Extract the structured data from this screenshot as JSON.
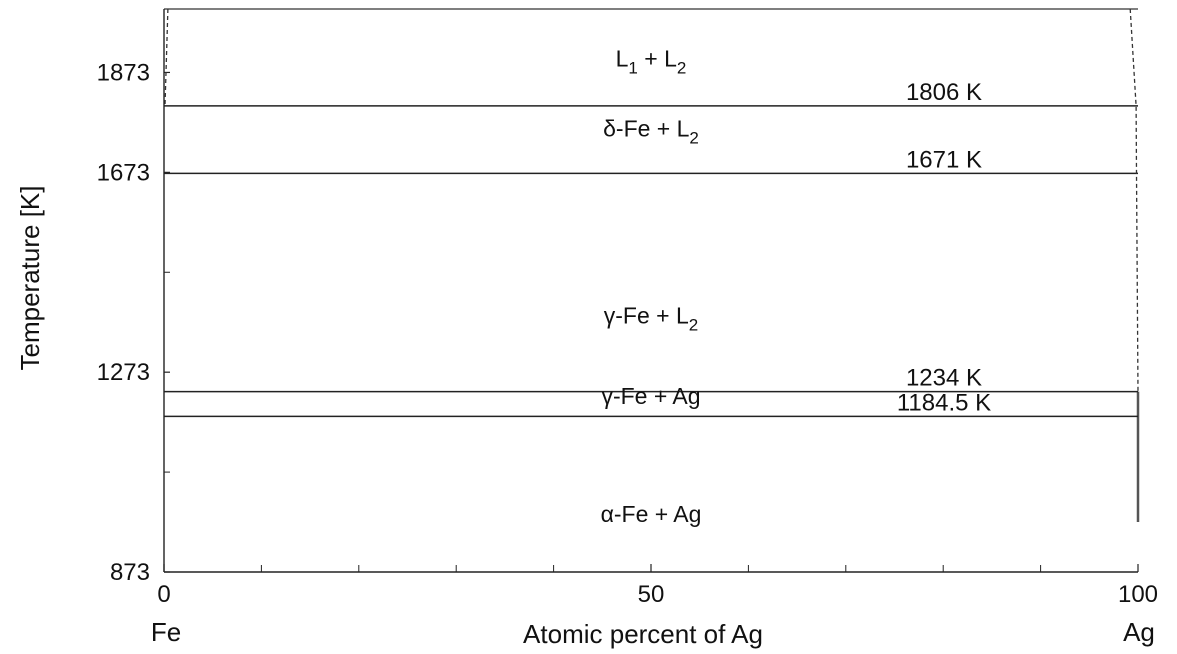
{
  "chart_data": {
    "type": "line",
    "title": "",
    "xlabel": "Atomic percent of Ag",
    "ylabel": "Temperature [K]",
    "xlim": [
      0,
      100
    ],
    "ylim": [
      873,
      2000
    ],
    "x_ticks": [
      0,
      50,
      100
    ],
    "x_tick_labels": [
      "0",
      "50",
      "100"
    ],
    "x_minor_ticks": [
      10,
      20,
      30,
      40,
      60,
      70,
      80,
      90
    ],
    "y_ticks": [
      873,
      1273,
      1673,
      1873
    ],
    "y_tick_labels": [
      "873",
      "1273",
      "1673",
      "1873"
    ],
    "y_minor_ticks": [
      1073,
      1473
    ],
    "x_end_labels": {
      "left": "Fe",
      "right": "Ag"
    },
    "isotherms": [
      {
        "value": 1806,
        "label": "1806 K"
      },
      {
        "value": 1671,
        "label": "1671 K"
      },
      {
        "value": 1234,
        "label": "1234 K"
      },
      {
        "value": 1184.5,
        "label": "1184.5 K"
      }
    ],
    "phase_regions": [
      {
        "base": "L",
        "sub": "1",
        "mid": " + L",
        "sub2": "2",
        "x": 50,
        "y": 1885
      },
      {
        "base": "δ-Fe + L",
        "sub": "2",
        "x": 50,
        "y": 1745
      },
      {
        "base": "γ-Fe + L",
        "sub": "2",
        "x": 50,
        "y": 1370
      },
      {
        "base": "γ-Fe + Ag",
        "x": 50,
        "y": 1209
      },
      {
        "base": "α-Fe + Ag",
        "x": 50,
        "y": 973
      }
    ],
    "boundaries": [
      {
        "name": "Fe-side liquidus (dashed)",
        "points": [
          [
            0.4,
            2000
          ],
          [
            0.1,
            1806
          ]
        ]
      },
      {
        "name": "Ag-side liquidus (dashed)",
        "points": [
          [
            99.2,
            2000
          ],
          [
            99.8,
            1806
          ],
          [
            99.85,
            1671
          ],
          [
            100,
            1234
          ]
        ]
      }
    ],
    "grid": false,
    "legend": "none"
  }
}
